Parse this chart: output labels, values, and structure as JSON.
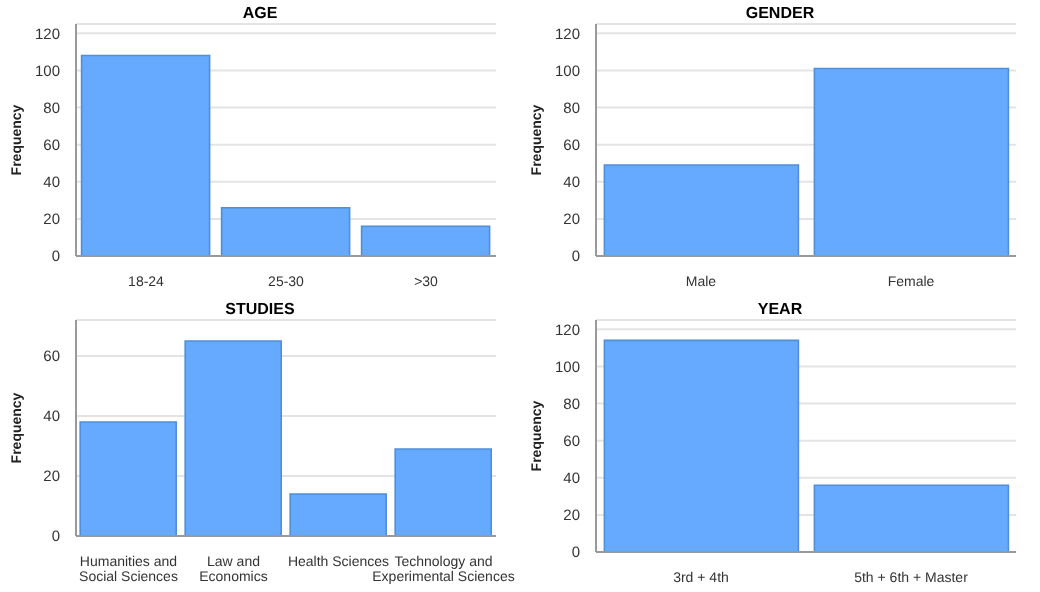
{
  "chart_data": [
    {
      "type": "bar",
      "title": "AGE",
      "ylabel": "Frequency",
      "categories": [
        "18-24",
        "25-30",
        ">30"
      ],
      "values": [
        108,
        26,
        16
      ],
      "color": "#66aaff",
      "ylim": [
        0,
        125
      ],
      "yticks": [
        0,
        20,
        40,
        60,
        80,
        100,
        120
      ],
      "grid": "y"
    },
    {
      "type": "bar",
      "title": "GENDER",
      "ylabel": "Frequency",
      "categories": [
        "Male",
        "Female"
      ],
      "values": [
        49,
        101
      ],
      "color": "#66aaff",
      "ylim": [
        0,
        125
      ],
      "yticks": [
        0,
        20,
        40,
        60,
        80,
        100,
        120
      ],
      "grid": "y"
    },
    {
      "type": "bar",
      "title": "STUDIES",
      "ylabel": "Frequency",
      "categories": [
        "Humanities and Social Sciences",
        "Law and Economics",
        "Health Sciences",
        "Technology and Experimental Sciences"
      ],
      "values": [
        38,
        65,
        14,
        29
      ],
      "color": "#66aaff",
      "ylim": [
        0,
        72
      ],
      "yticks": [
        0,
        20,
        40,
        60
      ],
      "grid": "y"
    },
    {
      "type": "bar",
      "title": "YEAR",
      "ylabel": "Frequency",
      "categories": [
        "3rd + 4th",
        "5th + 6th + Master"
      ],
      "values": [
        114,
        36
      ],
      "color": "#66aaff",
      "ylim": [
        0,
        125
      ],
      "yticks": [
        0,
        20,
        40,
        60,
        80,
        100,
        120
      ],
      "grid": "y"
    }
  ]
}
